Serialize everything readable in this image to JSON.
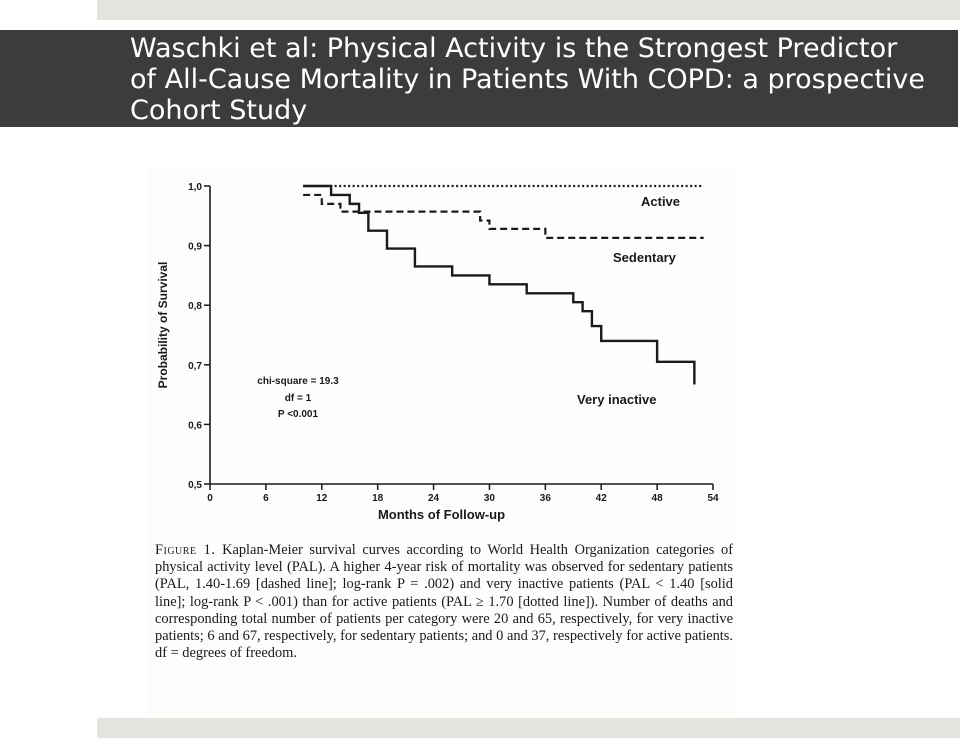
{
  "slide": {
    "title": "Waschki et al: Physical Activity is the Strongest Predictor of All-Cause Mortality in Patients With COPD: a prospective Cohort Study"
  },
  "colors": {
    "title_bar": "#3c3c3c",
    "strip": "#e3e5df",
    "ink": "#1a1a1a"
  },
  "chart_data": {
    "type": "line",
    "title": "",
    "xlabel": "Months of Follow-up",
    "ylabel": "Probability of Survival",
    "xlim": [
      0,
      54
    ],
    "ylim": [
      0.5,
      1.0
    ],
    "xticks": [
      0,
      6,
      12,
      18,
      24,
      30,
      36,
      42,
      48,
      54
    ],
    "xtick_labels": [
      "0",
      "6",
      "12",
      "18",
      "24",
      "30",
      "36",
      "42",
      "48",
      "54"
    ],
    "yticks": [
      0.5,
      0.6,
      0.7,
      0.8,
      0.9,
      1.0
    ],
    "ytick_labels": [
      "0,5",
      "0,6",
      "0,7",
      "0,8",
      "0,9",
      "1,0"
    ],
    "grid": false,
    "step": true,
    "series": [
      {
        "name": "Active",
        "style": "dotted",
        "x": [
          10,
          53
        ],
        "y": [
          1.0,
          1.0
        ]
      },
      {
        "name": "Sedentary",
        "style": "dashed",
        "x": [
          10,
          12,
          14,
          29,
          30,
          36,
          53
        ],
        "y": [
          0.985,
          0.97,
          0.957,
          0.942,
          0.928,
          0.913,
          0.913
        ]
      },
      {
        "name": "Very inactive",
        "style": "solid",
        "x": [
          10,
          13,
          15,
          16,
          17,
          19,
          22,
          26,
          30,
          34,
          39,
          40,
          41,
          42,
          48,
          52
        ],
        "y": [
          1.0,
          0.985,
          0.97,
          0.955,
          0.925,
          0.895,
          0.865,
          0.85,
          0.835,
          0.82,
          0.805,
          0.79,
          0.765,
          0.74,
          0.705,
          0.667
        ]
      }
    ],
    "annotations": [
      "chi-square = 19.3",
      "df = 1",
      "P <0.001"
    ]
  },
  "caption": {
    "label": "Figure 1.",
    "text": "Kaplan-Meier survival curves according to World Health Organization categories of physical activity level (PAL). A higher 4-year risk of mortality was observed for sedentary patients (PAL, 1.40-1.69 [dashed line]; log-rank P = .002) and very inactive patients (PAL < 1.40 [solid line]; log-rank P < .001) than for active patients (PAL ≥ 1.70 [dotted line]). Number of deaths and corresponding total number of patients per category were 20 and 65, respectively, for very inactive patients; 6 and 67, respectively, for sedentary patients; and 0 and 37, respectively for active patients. df = degrees of freedom."
  }
}
